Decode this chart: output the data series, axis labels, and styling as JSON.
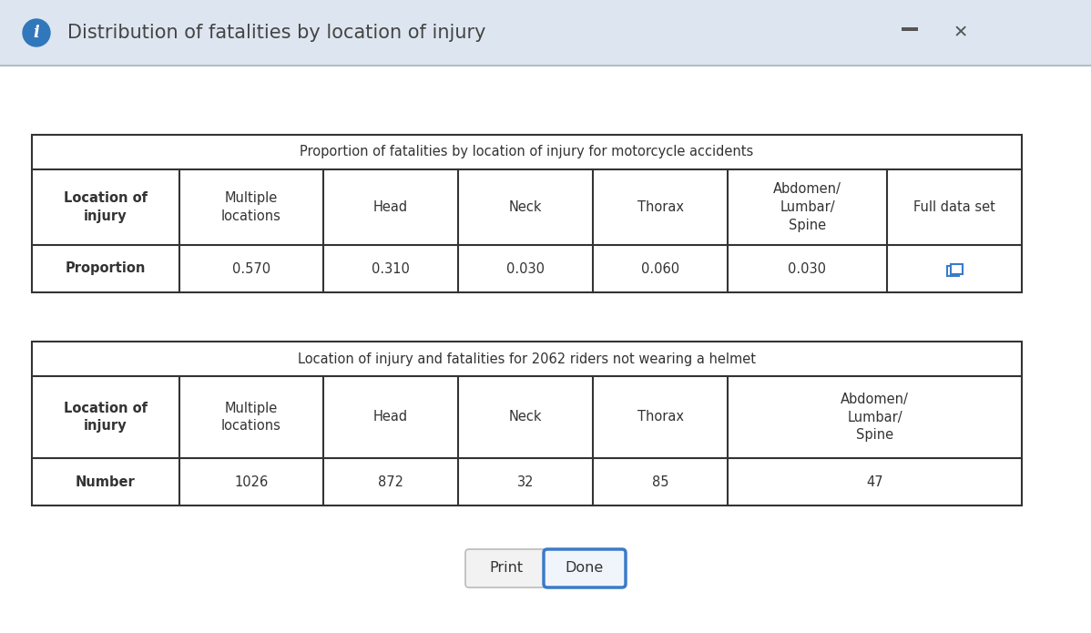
{
  "title_bar": "Distribution of fatalities by location of injury",
  "title_bar_bg": "#dde6f0",
  "title_bar_text_color": "#444444",
  "bg_color": "#dde6f0",
  "content_bg": "#ffffff",
  "table1_title": "Proportion of fatalities by location of injury for motorcycle accidents",
  "table1_headers": [
    "Location of\ninjury",
    "Multiple\nlocations",
    "Head",
    "Neck",
    "Thorax",
    "Abdomen/\nLumbar/\nSpine",
    "Full data set"
  ],
  "table1_header_bold": [
    true,
    false,
    false,
    false,
    false,
    false,
    false
  ],
  "table1_row_label": "Proportion",
  "table1_values": [
    "0.570",
    "0.310",
    "0.030",
    "0.060",
    "0.030"
  ],
  "table2_title": "Location of injury and fatalities for 2062 riders not wearing a helmet",
  "table2_headers": [
    "Location of\ninjury",
    "Multiple\nlocations",
    "Head",
    "Neck",
    "Thorax",
    "Abdomen/\nLumbar/\nSpine"
  ],
  "table2_header_bold": [
    true,
    false,
    false,
    false,
    false,
    false
  ],
  "table2_row_label": "Number",
  "table2_values": [
    "1026",
    "872",
    "32",
    "85",
    "47"
  ],
  "button_print": "Print",
  "button_done": "Done",
  "button_done_color": "#3a7bc8",
  "border_color": "#333333",
  "text_color": "#333333",
  "title_bar_sep_color": "#b0bec8"
}
